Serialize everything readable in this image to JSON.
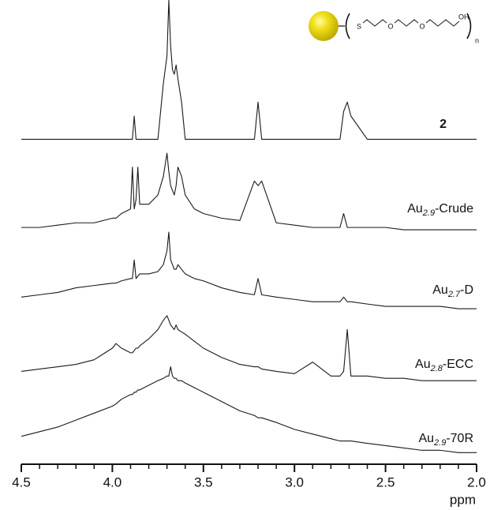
{
  "chart_data": {
    "type": "line",
    "x_label": "ppm",
    "xlim": [
      4.5,
      2.0
    ],
    "ylim": [
      0,
      100
    ],
    "xticks": [
      4.5,
      {
        "value": 4,
        "label": "4.0"
      },
      3.5,
      {
        "value": 3,
        "label": "3.0"
      },
      2.5,
      {
        "value": 2,
        "label": "2.0"
      }
    ],
    "xminorticks": [
      4.4,
      4.3,
      4.2,
      4.1,
      3.9,
      3.8,
      3.7,
      3.6,
      3.4,
      3.3,
      3.2,
      3.1,
      2.9,
      2.8,
      2.7,
      2.6,
      2.4,
      2.3,
      2.2,
      2.1
    ],
    "color": "#1a1a1a",
    "x": [
      4.5,
      4.4,
      4.3,
      4.2,
      4.1,
      4.0,
      3.98,
      3.95,
      3.9,
      3.89,
      3.88,
      3.87,
      3.86,
      3.85,
      3.8,
      3.75,
      3.72,
      3.7,
      3.69,
      3.68,
      3.67,
      3.66,
      3.65,
      3.64,
      3.62,
      3.6,
      3.55,
      3.5,
      3.4,
      3.3,
      3.22,
      3.2,
      3.18,
      3.1,
      3.0,
      2.9,
      2.8,
      2.75,
      2.73,
      2.71,
      2.69,
      2.6,
      2.5,
      2.4,
      2.3,
      2.2,
      2.1,
      2.0
    ],
    "series": [
      {
        "name": "2",
        "values": [
          70,
          70,
          70,
          70,
          70,
          70,
          70,
          70,
          70,
          70,
          75,
          70,
          70,
          70,
          70,
          70,
          82,
          88,
          100,
          90,
          85,
          84,
          86,
          83,
          78,
          70,
          70,
          70,
          70,
          70,
          70,
          78,
          70,
          70,
          70,
          70,
          70,
          70,
          76,
          78,
          75,
          70,
          70,
          70,
          70,
          70,
          70,
          70
        ]
      },
      {
        "name": "Au2.9-Crude",
        "values": [
          51,
          51,
          51.5,
          52,
          52,
          53,
          53,
          54,
          55,
          64,
          55,
          57,
          64,
          56,
          56,
          58,
          62,
          67,
          63,
          60,
          59,
          58,
          60,
          64,
          62,
          58,
          55,
          54,
          53,
          52.5,
          61,
          60,
          61,
          52,
          51.5,
          51,
          51,
          51,
          54,
          51,
          51,
          51,
          51,
          50.5,
          50.5,
          50.5,
          50.5,
          50.5
        ]
      },
      {
        "name": "Au2.7-D",
        "values": [
          36,
          36.5,
          37,
          38,
          38.5,
          39,
          39,
          39.5,
          40,
          40,
          44,
          40,
          40.5,
          41,
          41,
          41.5,
          43,
          46,
          50,
          44,
          43,
          42,
          42,
          43,
          42,
          41,
          40,
          39.5,
          38,
          37,
          36.5,
          40,
          36.5,
          36,
          35.5,
          35,
          35,
          35,
          36,
          35,
          35,
          34.5,
          34,
          34,
          34,
          34,
          33.5,
          33.5
        ]
      },
      {
        "name": "Au2.8-ECC",
        "values": [
          20,
          20.5,
          21,
          21.5,
          22.5,
          25,
          26,
          25,
          24,
          24,
          24.5,
          25,
          25,
          25.5,
          27,
          29,
          31,
          32,
          31,
          30,
          29.5,
          29,
          30,
          29,
          28.5,
          28,
          26.5,
          25,
          23,
          21.5,
          21,
          21,
          20.5,
          20,
          19.5,
          22,
          19,
          19,
          20,
          29,
          19,
          19,
          18.5,
          18.5,
          18,
          18,
          18,
          18
        ]
      },
      {
        "name": "Au2.9-70R",
        "values": [
          6,
          7,
          8,
          9.5,
          11,
          12.5,
          13,
          14,
          15,
          15,
          15.5,
          15.5,
          16,
          16,
          17,
          18,
          18.5,
          19,
          19,
          21,
          19,
          18.5,
          18.5,
          18,
          18,
          17.5,
          16.5,
          15.5,
          13.5,
          11.5,
          10.5,
          10,
          10,
          9,
          7.5,
          6.5,
          5.5,
          5,
          5,
          5,
          5,
          4.5,
          4,
          3.5,
          3,
          3,
          2.5,
          2.5
        ]
      }
    ],
    "structure": {
      "atoms": [
        "S",
        "O",
        "O",
        "OH"
      ],
      "subscript": "n"
    }
  }
}
